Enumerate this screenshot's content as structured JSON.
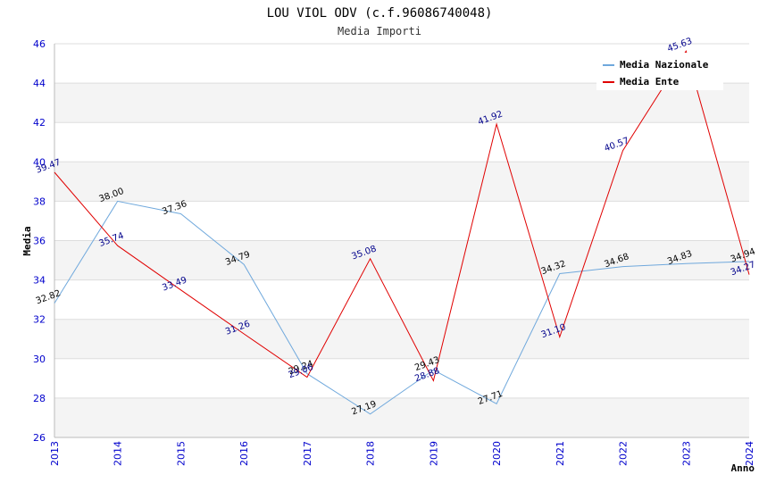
{
  "chart_data": {
    "type": "line",
    "title": "LOU VIOL ODV (c.f.96086740048)",
    "subtitle": "Media Importi",
    "xlabel": "Anno",
    "ylabel": "Media",
    "ylim": [
      26,
      46
    ],
    "yticks": [
      26,
      28,
      30,
      32,
      34,
      36,
      38,
      40,
      42,
      44,
      46
    ],
    "x": [
      "2013",
      "2014",
      "2015",
      "2016",
      "2017",
      "2018",
      "2019",
      "2020",
      "2021",
      "2022",
      "2023",
      "2024"
    ],
    "grid": true,
    "legend_position": "top-right",
    "series": [
      {
        "name": "Media Nazionale",
        "color": "#6fa8dc",
        "label_color": "#000000",
        "values": [
          32.82,
          38.0,
          37.36,
          34.79,
          29.24,
          27.19,
          29.43,
          27.71,
          34.32,
          34.68,
          34.83,
          34.94
        ],
        "labels": [
          "32.82",
          "38.00",
          "37.36",
          "34.79",
          "29.24",
          "27.19",
          "29.43",
          "27.71",
          "34.32",
          "34.68",
          "34.83",
          "34.94"
        ]
      },
      {
        "name": "Media Ente",
        "color": "#e00000",
        "label_color": "#00008b",
        "values": [
          39.47,
          35.74,
          33.49,
          31.26,
          29.06,
          35.08,
          28.88,
          41.92,
          31.1,
          40.57,
          45.63,
          34.27
        ],
        "labels": [
          "39.47",
          "35.74",
          "33.49",
          "31.26",
          "29.06",
          "35.08",
          "28.88",
          "41.92",
          "31.10",
          "40.57",
          "45.63",
          "34.27"
        ]
      }
    ]
  }
}
